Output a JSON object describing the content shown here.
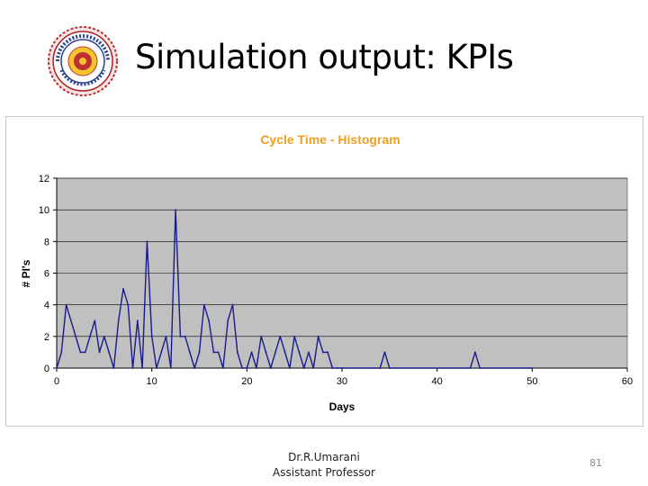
{
  "slide": {
    "title": "Simulation output: KPIs",
    "author_name": "Dr.R.Umarani",
    "author_role": "Assistant Professor",
    "page_number": "81",
    "logo": {
      "icon": "institute-seal-icon"
    }
  },
  "colors": {
    "chart_title": "#f0a020",
    "plot_background": "#c0c0c0",
    "series_line": "#1a1a8c",
    "gridline": "#000000"
  },
  "chart_data": {
    "type": "line",
    "title": "Cycle Time - Histogram",
    "xlabel": "Days",
    "ylabel": "# PI's",
    "xlim": [
      0,
      60
    ],
    "ylim": [
      0,
      12
    ],
    "xticks": [
      0,
      10,
      20,
      30,
      40,
      50,
      60
    ],
    "yticks": [
      0,
      2,
      4,
      6,
      8,
      10,
      12
    ],
    "grid": "horizontal",
    "legend": "none",
    "series": [
      {
        "x": [
          0,
          0.5,
          1,
          2,
          2.5,
          3,
          3.5,
          4,
          4.5,
          5,
          5.5,
          6,
          6.5,
          7,
          7.5,
          8,
          8.5,
          9,
          9.5,
          10,
          10.5,
          11,
          11.5,
          12,
          12.5,
          13,
          13.5,
          14,
          14.5,
          15,
          15.5,
          16,
          16.5,
          17,
          17.5,
          18,
          18.5,
          19,
          19.5,
          20,
          20.5,
          21,
          21.5,
          22,
          22.5,
          23,
          23.5,
          24,
          24.5,
          25,
          25.5,
          26,
          26.5,
          27,
          27.5,
          28,
          28.5,
          29,
          29.5,
          30,
          34,
          34.5,
          35,
          43.5,
          44,
          44.5,
          50
        ],
        "y": [
          0,
          1,
          4,
          2,
          1,
          1,
          2,
          3,
          1,
          2,
          1,
          0,
          3,
          5,
          4,
          0,
          3,
          0,
          8,
          2,
          0,
          1,
          2,
          0,
          10,
          2,
          2,
          1,
          0,
          1,
          4,
          3,
          1,
          1,
          0,
          3,
          4,
          1,
          0,
          0,
          1,
          0,
          2,
          1,
          0,
          1,
          2,
          1,
          0,
          2,
          1,
          0,
          1,
          0,
          2,
          1,
          1,
          0,
          0,
          0,
          0,
          1,
          0,
          0,
          1,
          0,
          0
        ]
      }
    ]
  }
}
